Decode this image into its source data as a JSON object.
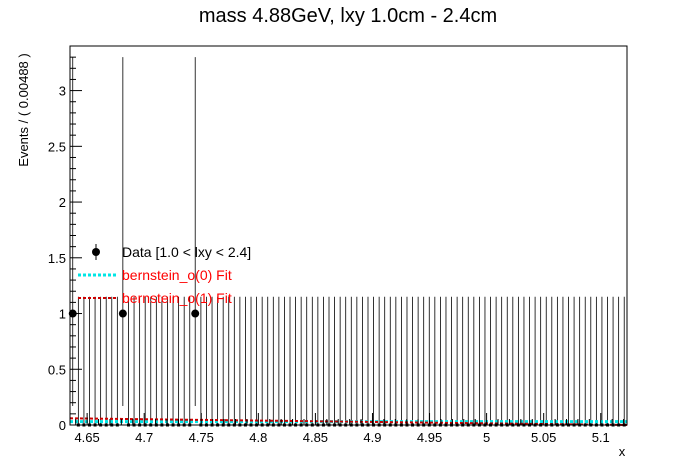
{
  "chart_data": {
    "type": "scatter",
    "title": "mass 4.88GeV, lxy 1.0cm - 2.4cm",
    "xlabel": "x",
    "ylabel": "Events / ( 0.00488 )",
    "xlim": [
      4.635,
      5.123
    ],
    "ylim": [
      0,
      3.4
    ],
    "x_ticks": [
      "4.65",
      "4.7",
      "4.75",
      "4.8",
      "4.85",
      "4.9",
      "4.95",
      "5",
      "5.05",
      "5.1"
    ],
    "x_tick_values": [
      4.65,
      4.7,
      4.75,
      4.8,
      4.85,
      4.9,
      4.95,
      5.0,
      5.05,
      5.1
    ],
    "y_ticks": [
      "0",
      "0.5",
      "1",
      "1.5",
      "2",
      "2.5",
      "3"
    ],
    "y_tick_values": [
      0,
      0.5,
      1,
      1.5,
      2,
      2.5,
      3
    ],
    "bin_width": 0.00488,
    "n_bins": 100,
    "nonzero_bins": [
      {
        "x": 4.6374,
        "y": 1,
        "err_low": 0.83,
        "err_high": 2.3
      },
      {
        "x": 4.6813,
        "y": 1,
        "err_low": 0.83,
        "err_high": 2.3
      },
      {
        "x": 4.7447,
        "y": 1,
        "err_low": 0.83,
        "err_high": 2.3
      }
    ],
    "empty_bin_err_high": 1.15,
    "series": [
      {
        "name": "Data [1.0 < lxy < 2.4]",
        "color": "#000000",
        "style": "points"
      },
      {
        "name": "bernstein_o(0) Fit",
        "color": "#00e5e5",
        "style": "dashed",
        "value": 0.03
      },
      {
        "name": "bernstein_o(1) Fit",
        "color": "#cc0000",
        "style": "dashed",
        "value_start": 0.06,
        "value_end": 0.0
      }
    ],
    "legend_placement": "left",
    "grid": false
  }
}
